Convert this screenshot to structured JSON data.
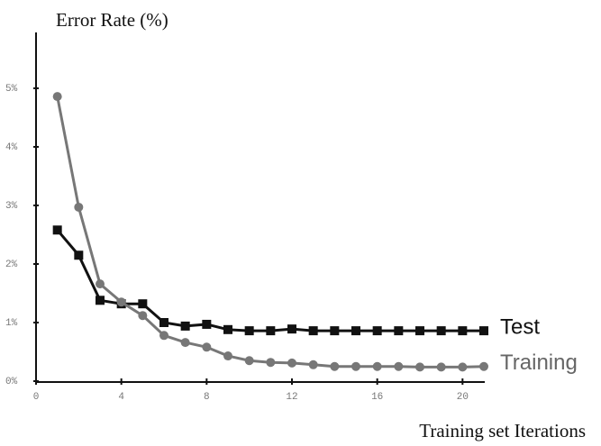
{
  "chart_data": {
    "type": "line",
    "title": "Error Rate (%)",
    "x_label": "Training set Iterations",
    "x": [
      1,
      2,
      3,
      4,
      5,
      6,
      7,
      8,
      9,
      10,
      11,
      12,
      13,
      14,
      15,
      16,
      17,
      18,
      19,
      20,
      21
    ],
    "series": [
      {
        "name": "Test",
        "color": "#111111",
        "marker": "square",
        "values": [
          2.58,
          2.15,
          1.38,
          1.32,
          1.32,
          1.0,
          0.94,
          0.97,
          0.88,
          0.86,
          0.86,
          0.89,
          0.86,
          0.86,
          0.86,
          0.86,
          0.86,
          0.86,
          0.86,
          0.86,
          0.86
        ]
      },
      {
        "name": "Training",
        "color": "#777777",
        "marker": "circle",
        "values": [
          4.86,
          2.97,
          1.66,
          1.35,
          1.12,
          0.78,
          0.66,
          0.58,
          0.43,
          0.35,
          0.32,
          0.31,
          0.28,
          0.25,
          0.25,
          0.25,
          0.25,
          0.24,
          0.24,
          0.24,
          0.25
        ]
      }
    ],
    "xlim": [
      0,
      21
    ],
    "ylim": [
      0,
      6
    ],
    "xticks": [
      0,
      4,
      8,
      12,
      16,
      20
    ],
    "yticks": [
      {
        "value": 0,
        "label": "0%"
      },
      {
        "value": 1,
        "label": "1%"
      },
      {
        "value": 2,
        "label": "2%"
      },
      {
        "value": 3,
        "label": "3%"
      },
      {
        "value": 4,
        "label": "4%"
      },
      {
        "value": 5,
        "label": "5%"
      }
    ],
    "grid": false
  }
}
